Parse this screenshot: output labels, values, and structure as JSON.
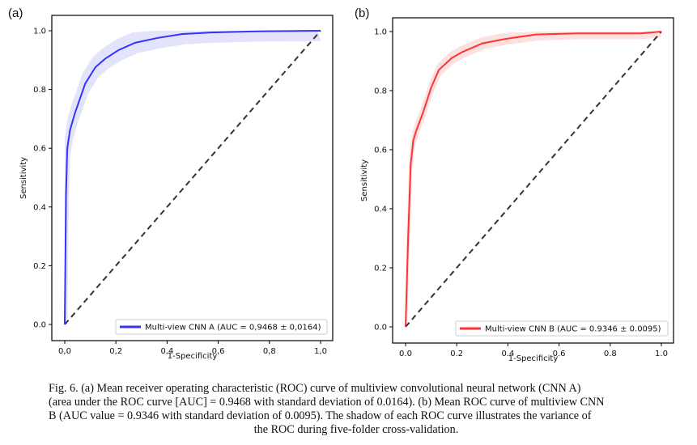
{
  "panels": [
    {
      "label": "(a)"
    },
    {
      "label": "(b)"
    }
  ],
  "chart_data": [
    {
      "type": "line",
      "xlabel": "1-Specificity",
      "ylabel": "Sensitivity",
      "xlim": [
        0,
        1
      ],
      "ylim": [
        0,
        1
      ],
      "xticks": [
        "0,0",
        "0,2",
        "0,4",
        "0,6",
        "0,8",
        "1,0"
      ],
      "yticks": [
        "0.0",
        "0.2",
        "0.4",
        "0.6",
        "0.8",
        "1.0"
      ],
      "grid": false,
      "legend_position": "bottom-right",
      "series": [
        {
          "name": "Multi-view CNN A (AUC = 0,9468 ± 0,0164)",
          "color": "#3333ff",
          "band_color": "#e3e3fb",
          "x": [
            0,
            0.005,
            0.01,
            0.02,
            0.04,
            0.08,
            0.12,
            0.16,
            0.21,
            0.275,
            0.36,
            0.46,
            0.57,
            0.75,
            1.0
          ],
          "y": [
            0,
            0.45,
            0.6,
            0.66,
            0.72,
            0.82,
            0.876,
            0.906,
            0.934,
            0.959,
            0.975,
            0.989,
            0.994,
            0.998,
            1.0
          ],
          "band_spread": 0.035
        },
        {
          "name": "chance",
          "color": "#333333",
          "style": "dashed",
          "x": [
            0,
            1
          ],
          "y": [
            0,
            1
          ]
        }
      ]
    },
    {
      "type": "line",
      "xlabel": "1-Specificity",
      "ylabel": "Sensitivity",
      "xlim": [
        0,
        1
      ],
      "ylim": [
        0,
        1
      ],
      "xticks": [
        "0.0",
        "0.2",
        "0.4",
        "0.6",
        "0.8",
        "1.0"
      ],
      "yticks": [
        "0.0",
        "0.2",
        "0.4",
        "0.6",
        "0.8",
        "1.0"
      ],
      "grid": false,
      "legend_position": "bottom-right",
      "series": [
        {
          "name": "Multi-view CNN B (AUC = 0.9346 ± 0.0095)",
          "color": "#ff3333",
          "band_color": "#fde0e0",
          "x": [
            0,
            0.01,
            0.02,
            0.03,
            0.04,
            0.07,
            0.1,
            0.13,
            0.18,
            0.22,
            0.3,
            0.39,
            0.51,
            0.67,
            0.92,
            1.0
          ],
          "y": [
            0,
            0.3,
            0.55,
            0.63,
            0.66,
            0.73,
            0.81,
            0.87,
            0.91,
            0.93,
            0.96,
            0.975,
            0.99,
            0.994,
            0.994,
            1.0
          ],
          "band_spread": 0.02
        },
        {
          "name": "chance",
          "color": "#333333",
          "style": "dashed",
          "x": [
            0,
            1
          ],
          "y": [
            0,
            1
          ]
        }
      ]
    }
  ],
  "caption": {
    "lines": [
      "Fig. 6. (a) Mean receiver operating characteristic (ROC) curve of multiview convolutional neural network (CNN A)",
      "(area under the ROC curve [AUC] = 0.9468 with standard deviation of 0.0164). (b) Mean ROC curve of multiview CNN",
      "B (AUC value = 0.9346 with standard deviation of 0.0095). The shadow of each ROC curve illustrates the variance of",
      "the ROC during five-folder cross-validation."
    ]
  }
}
